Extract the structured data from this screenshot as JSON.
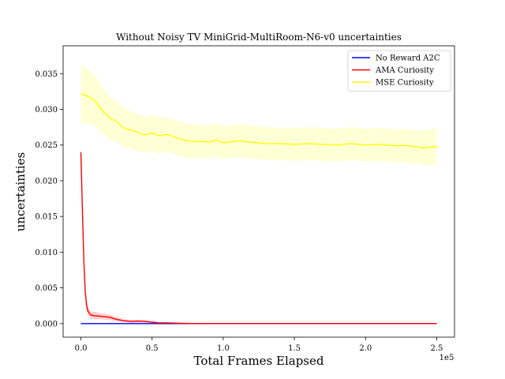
{
  "chart_data": {
    "type": "line",
    "title": "Without Noisy TV MiniGrid-MultiRoom-N6-v0 uncertainties",
    "xlabel": "Total Frames Elapsed",
    "ylabel": "uncertainties",
    "x_offset_label": "1e5",
    "xlim": [
      -12500,
      262500
    ],
    "ylim": [
      -0.0019,
      0.0389
    ],
    "x_ticks": [
      0,
      0.5,
      1.0,
      1.5,
      2.0,
      2.5
    ],
    "x_tick_labels": [
      "0.0",
      "0.5",
      "1.0",
      "1.5",
      "2.0",
      "2.5"
    ],
    "y_ticks": [
      0.0,
      0.005,
      0.01,
      0.015,
      0.02,
      0.025,
      0.03,
      0.035
    ],
    "y_tick_labels": [
      "0.000",
      "0.005",
      "0.010",
      "0.015",
      "0.020",
      "0.025",
      "0.030",
      "0.035"
    ],
    "grid": false,
    "legend_position": "top-right",
    "series": [
      {
        "name": "No Reward A2C",
        "color": "#0000ff",
        "band_color": "#aaaaff",
        "x": [
          0,
          250000
        ],
        "y": [
          0.0,
          0.0
        ],
        "band": 0.0
      },
      {
        "name": "AMA Curiosity",
        "color": "#ff0000",
        "band_color": "#ffaaaa",
        "x": [
          0,
          1000,
          2000,
          3000,
          4000,
          5000,
          7000,
          10000,
          15000,
          20000,
          25000,
          30000,
          35000,
          40000,
          45000,
          50000,
          55000,
          60000,
          70000,
          80000,
          100000,
          150000,
          200000,
          250000
        ],
        "y": [
          0.024,
          0.0165,
          0.009,
          0.0045,
          0.0025,
          0.0017,
          0.0012,
          0.0011,
          0.001,
          0.0009,
          0.0006,
          0.0004,
          0.0003,
          0.00035,
          0.0003,
          0.0002,
          0.0001,
          0.0001,
          5e-05,
          0.0,
          0.0,
          0.0,
          0.0,
          0.0
        ],
        "band": [
          0.0009,
          0.0009,
          0.0008,
          0.0008,
          0.0007,
          0.0006,
          0.0005,
          0.0005,
          0.0004,
          0.0004,
          0.0003,
          0.0002,
          0.0002,
          0.0002,
          0.0002,
          0.0001,
          0.0001,
          0.0001,
          0.0,
          0.0,
          0.0,
          0.0,
          0.0,
          0.0
        ]
      },
      {
        "name": "MSE Curiosity",
        "color": "#ffff00",
        "band_color": "#ffffb3",
        "x": [
          0,
          5000,
          10000,
          15000,
          20000,
          25000,
          30000,
          35000,
          40000,
          45000,
          50000,
          55000,
          60000,
          65000,
          70000,
          75000,
          80000,
          85000,
          90000,
          95000,
          100000,
          110000,
          120000,
          130000,
          140000,
          150000,
          160000,
          170000,
          180000,
          190000,
          200000,
          210000,
          220000,
          230000,
          240000,
          250000
        ],
        "y": [
          0.0322,
          0.0318,
          0.0312,
          0.0298,
          0.0288,
          0.0283,
          0.0274,
          0.0271,
          0.0268,
          0.0264,
          0.0267,
          0.0263,
          0.0265,
          0.0262,
          0.0258,
          0.0256,
          0.0255,
          0.0255,
          0.0254,
          0.0257,
          0.0253,
          0.0256,
          0.0254,
          0.0252,
          0.0252,
          0.0251,
          0.0252,
          0.0251,
          0.025,
          0.0252,
          0.025,
          0.0251,
          0.0249,
          0.0249,
          0.0246,
          0.0248
        ],
        "band": [
          0.004,
          0.0038,
          0.0035,
          0.0032,
          0.003,
          0.0028,
          0.0027,
          0.0026,
          0.0026,
          0.0025,
          0.0025,
          0.0025,
          0.0024,
          0.0024,
          0.0024,
          0.0024,
          0.0024,
          0.0023,
          0.0023,
          0.0023,
          0.0023,
          0.0023,
          0.0023,
          0.0023,
          0.0023,
          0.0023,
          0.0023,
          0.0023,
          0.0023,
          0.0023,
          0.0023,
          0.0023,
          0.0023,
          0.0023,
          0.0024,
          0.0025
        ]
      }
    ]
  }
}
